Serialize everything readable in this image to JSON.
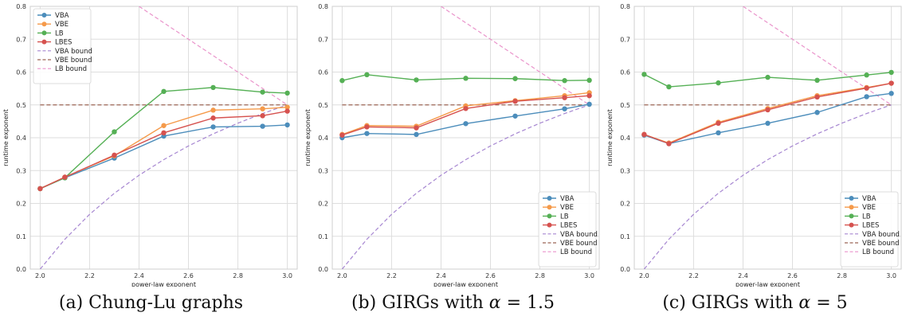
{
  "colors": {
    "VBA": "#4c8dbb",
    "VBE": "#f59a4a",
    "LB": "#55b055",
    "LBES": "#d6524f",
    "VBA bound": "#a686d1",
    "VBE bound": "#9c6656",
    "LB bound": "#ea94cb",
    "grid": "#dedede",
    "frame": "#cfcfcf"
  },
  "panels": [
    {
      "caption_prefix": "(a) Chung-Lu graphs",
      "caption_math": "",
      "caption_suffix": ""
    },
    {
      "caption_prefix": "(b) GIRGs with ",
      "caption_math": "α",
      "caption_suffix": " = 1.5"
    },
    {
      "caption_prefix": "(c) GIRGs with ",
      "caption_math": "α",
      "caption_suffix": " = 5"
    }
  ],
  "chart_data": [
    {
      "type": "line",
      "title": "",
      "xlabel": "power-law exponent",
      "ylabel": "runtime exponent",
      "xlim": [
        1.96,
        3.04
      ],
      "ylim": [
        0.0,
        0.8
      ],
      "xticks": [
        "2.0",
        "2.2",
        "2.4",
        "2.6",
        "2.8",
        "3.0"
      ],
      "yticks": [
        "0.0",
        "0.1",
        "0.2",
        "0.3",
        "0.4",
        "0.5",
        "0.6",
        "0.7",
        "0.8"
      ],
      "grid": true,
      "legend_position": "top-left",
      "series": [
        {
          "name": "VBA",
          "style": "marker",
          "x": [
            2.0,
            2.1,
            2.3,
            2.5,
            2.7,
            2.9,
            3.0
          ],
          "y": [
            0.245,
            0.278,
            0.338,
            0.405,
            0.433,
            0.435,
            0.439
          ]
        },
        {
          "name": "VBE",
          "style": "marker",
          "x": [
            2.0,
            2.1,
            2.3,
            2.5,
            2.7,
            2.9,
            3.0
          ],
          "y": [
            0.245,
            0.28,
            0.345,
            0.437,
            0.484,
            0.488,
            0.493
          ]
        },
        {
          "name": "LB",
          "style": "marker",
          "x": [
            2.0,
            2.1,
            2.3,
            2.5,
            2.7,
            2.9,
            3.0
          ],
          "y": [
            0.245,
            0.278,
            0.418,
            0.541,
            0.553,
            0.539,
            0.536
          ]
        },
        {
          "name": "LBES",
          "style": "marker",
          "x": [
            2.0,
            2.1,
            2.3,
            2.5,
            2.7,
            2.9,
            3.0
          ],
          "y": [
            0.245,
            0.28,
            0.347,
            0.415,
            0.46,
            0.467,
            0.481
          ]
        },
        {
          "name": "VBA bound",
          "style": "dashed",
          "x": [
            2.0,
            2.1,
            2.2,
            2.3,
            2.4,
            2.5,
            2.6,
            2.7,
            2.8,
            2.9,
            3.0
          ],
          "y": [
            0.0,
            0.0909,
            0.1667,
            0.2308,
            0.2857,
            0.3333,
            0.375,
            0.4118,
            0.4444,
            0.4737,
            0.5
          ]
        },
        {
          "name": "VBE bound",
          "style": "dashed",
          "x": [
            2.0,
            3.0
          ],
          "y": [
            0.5,
            0.5
          ]
        },
        {
          "name": "LB bound",
          "style": "dashed",
          "x": [
            2.4,
            2.5,
            2.6,
            2.7,
            2.8,
            2.9,
            3.0
          ],
          "y": [
            0.8,
            0.75,
            0.7,
            0.65,
            0.6,
            0.55,
            0.5
          ]
        }
      ]
    },
    {
      "type": "line",
      "title": "",
      "xlabel": "power-law exponent",
      "ylabel": "runtime exponent",
      "xlim": [
        1.96,
        3.04
      ],
      "ylim": [
        0.0,
        0.8
      ],
      "xticks": [
        "2.0",
        "2.2",
        "2.4",
        "2.6",
        "2.8",
        "3.0"
      ],
      "yticks": [
        "0.0",
        "0.1",
        "0.2",
        "0.3",
        "0.4",
        "0.5",
        "0.6",
        "0.7",
        "0.8"
      ],
      "grid": true,
      "legend_position": "bottom-right",
      "series": [
        {
          "name": "VBA",
          "style": "marker",
          "x": [
            2.0,
            2.1,
            2.3,
            2.5,
            2.7,
            2.9,
            3.0
          ],
          "y": [
            0.4,
            0.413,
            0.41,
            0.443,
            0.466,
            0.488,
            0.502
          ]
        },
        {
          "name": "VBE",
          "style": "marker",
          "x": [
            2.0,
            2.1,
            2.3,
            2.5,
            2.7,
            2.9,
            3.0
          ],
          "y": [
            0.41,
            0.437,
            0.435,
            0.497,
            0.513,
            0.528,
            0.537
          ]
        },
        {
          "name": "LB",
          "style": "marker",
          "x": [
            2.0,
            2.1,
            2.3,
            2.5,
            2.7,
            2.9,
            3.0
          ],
          "y": [
            0.574,
            0.592,
            0.576,
            0.581,
            0.58,
            0.574,
            0.575
          ]
        },
        {
          "name": "LBES",
          "style": "marker",
          "x": [
            2.0,
            2.1,
            2.3,
            2.5,
            2.7,
            2.9,
            3.0
          ],
          "y": [
            0.408,
            0.433,
            0.43,
            0.489,
            0.511,
            0.522,
            0.528
          ]
        },
        {
          "name": "VBA bound",
          "style": "dashed",
          "x": [
            2.0,
            2.1,
            2.2,
            2.3,
            2.4,
            2.5,
            2.6,
            2.7,
            2.8,
            2.9,
            3.0
          ],
          "y": [
            0.0,
            0.0909,
            0.1667,
            0.2308,
            0.2857,
            0.3333,
            0.375,
            0.4118,
            0.4444,
            0.4737,
            0.5
          ]
        },
        {
          "name": "VBE bound",
          "style": "dashed",
          "x": [
            2.0,
            3.0
          ],
          "y": [
            0.5,
            0.5
          ]
        },
        {
          "name": "LB bound",
          "style": "dashed",
          "x": [
            2.4,
            2.5,
            2.6,
            2.7,
            2.8,
            2.9,
            3.0
          ],
          "y": [
            0.8,
            0.75,
            0.7,
            0.65,
            0.6,
            0.55,
            0.5
          ]
        }
      ]
    },
    {
      "type": "line",
      "title": "",
      "xlabel": "power-law exponent",
      "ylabel": "runtime exponent",
      "xlim": [
        1.96,
        3.04
      ],
      "ylim": [
        0.0,
        0.8
      ],
      "xticks": [
        "2.0",
        "2.2",
        "2.4",
        "2.6",
        "2.8",
        "3.0"
      ],
      "yticks": [
        "0.0",
        "0.1",
        "0.2",
        "0.3",
        "0.4",
        "0.5",
        "0.6",
        "0.7",
        "0.8"
      ],
      "grid": true,
      "legend_position": "bottom-right",
      "series": [
        {
          "name": "VBA",
          "style": "marker",
          "x": [
            2.0,
            2.1,
            2.3,
            2.5,
            2.7,
            2.9,
            3.0
          ],
          "y": [
            0.408,
            0.382,
            0.415,
            0.444,
            0.477,
            0.525,
            0.535
          ]
        },
        {
          "name": "VBE",
          "style": "marker",
          "x": [
            2.0,
            2.1,
            2.3,
            2.5,
            2.7,
            2.9,
            3.0
          ],
          "y": [
            0.41,
            0.384,
            0.447,
            0.489,
            0.528,
            0.553,
            0.566
          ]
        },
        {
          "name": "LB",
          "style": "marker",
          "x": [
            2.0,
            2.1,
            2.3,
            2.5,
            2.7,
            2.9,
            3.0
          ],
          "y": [
            0.593,
            0.555,
            0.567,
            0.584,
            0.575,
            0.591,
            0.599
          ]
        },
        {
          "name": "LBES",
          "style": "marker",
          "x": [
            2.0,
            2.1,
            2.3,
            2.5,
            2.7,
            2.9,
            3.0
          ],
          "y": [
            0.41,
            0.382,
            0.444,
            0.485,
            0.524,
            0.551,
            0.566
          ]
        },
        {
          "name": "VBA bound",
          "style": "dashed",
          "x": [
            2.0,
            2.1,
            2.2,
            2.3,
            2.4,
            2.5,
            2.6,
            2.7,
            2.8,
            2.9,
            3.0
          ],
          "y": [
            0.0,
            0.0909,
            0.1667,
            0.2308,
            0.2857,
            0.3333,
            0.375,
            0.4118,
            0.4444,
            0.4737,
            0.5
          ]
        },
        {
          "name": "VBE bound",
          "style": "dashed",
          "x": [
            2.0,
            3.0
          ],
          "y": [
            0.5,
            0.5
          ]
        },
        {
          "name": "LB bound",
          "style": "dashed",
          "x": [
            2.4,
            2.5,
            2.6,
            2.7,
            2.8,
            2.9,
            3.0
          ],
          "y": [
            0.8,
            0.75,
            0.7,
            0.65,
            0.6,
            0.55,
            0.5
          ]
        }
      ]
    }
  ]
}
